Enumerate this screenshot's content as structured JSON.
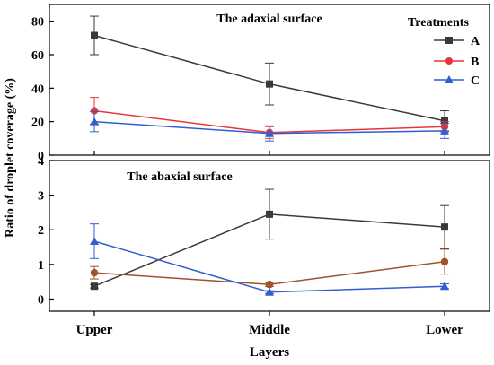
{
  "chart_data": [
    {
      "type": "line",
      "title": "The adaxial surface",
      "categories": [
        "Upper",
        "Middle",
        "Lower"
      ],
      "ylim": [
        0,
        90
      ],
      "yticks": [
        0,
        20,
        40,
        60,
        80
      ],
      "grid": false,
      "legend_title": "Treatments",
      "legend_position": "top-right",
      "series": [
        {
          "name": "A",
          "color": "#3a3a3a",
          "marker": "square",
          "values": [
            71.5,
            42.5,
            20.5
          ],
          "errors": [
            11.5,
            12.5,
            6.0
          ]
        },
        {
          "name": "B",
          "color": "#e8353a",
          "marker": "circle",
          "values": [
            26.5,
            13.5,
            17.0
          ],
          "errors": [
            8.0,
            3.5,
            3.0
          ]
        },
        {
          "name": "C",
          "color": "#2f5fd0",
          "marker": "triangle",
          "values": [
            20.0,
            13.0,
            14.5
          ],
          "errors": [
            6.0,
            4.5,
            4.5
          ]
        }
      ]
    },
    {
      "type": "line",
      "title": "The abaxial surface",
      "categories": [
        "Upper",
        "Middle",
        "Lower"
      ],
      "ylim": [
        -0.35,
        4
      ],
      "yticks": [
        0,
        1,
        2,
        3,
        4
      ],
      "grid": false,
      "series": [
        {
          "name": "A",
          "color": "#3a3a3a",
          "marker": "square",
          "values": [
            0.37,
            2.45,
            2.08
          ],
          "errors": [
            0.05,
            0.72,
            0.62
          ]
        },
        {
          "name": "B",
          "color": "#a0522d",
          "marker": "circle",
          "values": [
            0.76,
            0.42,
            1.08
          ],
          "errors": [
            0.18,
            0.06,
            0.36
          ]
        },
        {
          "name": "C",
          "color": "#2f5fd0",
          "marker": "triangle",
          "values": [
            1.67,
            0.2,
            0.37
          ],
          "errors": [
            0.5,
            0.04,
            0.07
          ]
        }
      ]
    }
  ],
  "axes": {
    "ylabel": "Ratio of droplet coverage (%)",
    "xlabel": "Layers"
  }
}
